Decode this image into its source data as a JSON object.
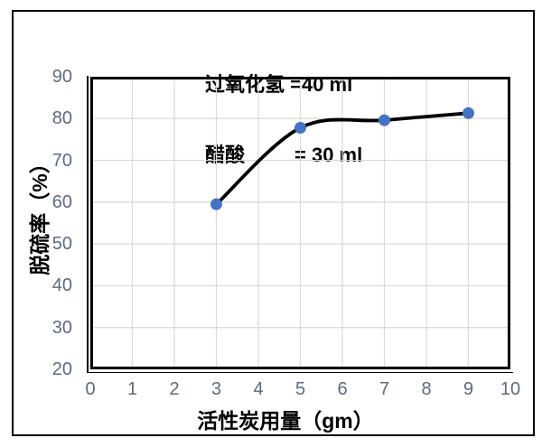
{
  "figure": {
    "title_line1": "过氧化氢 =40 ml",
    "title_line2": "醋酸         = 30 ml"
  },
  "chart_data": {
    "type": "line",
    "title": "过氧化氢 =40 ml；醋酸 = 30 ml",
    "x": [
      3,
      5,
      7,
      9
    ],
    "y": [
      59.5,
      77.8,
      79.6,
      81.3
    ],
    "xlabel": "活性炭用量（gm）",
    "ylabel": "脱硫率（%）",
    "xlim": [
      0,
      10
    ],
    "ylim": [
      20,
      90
    ],
    "x_ticks": [
      0,
      1,
      2,
      3,
      4,
      5,
      6,
      7,
      8,
      9,
      10
    ],
    "y_ticks": [
      20,
      30,
      40,
      50,
      60,
      70,
      80,
      90
    ],
    "grid": true,
    "legend": "none",
    "smooth_line": true,
    "colors": {
      "marker": "#4472C4",
      "line": "#000000",
      "grid": "#d9d9d9",
      "tick_label": "#5a6b80",
      "plot_border": "#000000"
    }
  }
}
